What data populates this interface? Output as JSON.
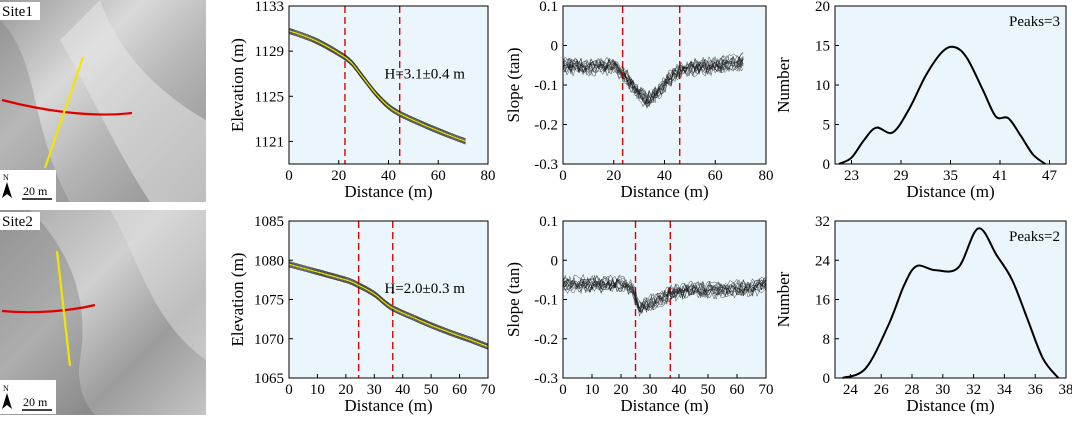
{
  "chart_data": [
    {
      "id": "site1-map",
      "type": "image",
      "label": "Site1",
      "north": "N",
      "scale": "20 m"
    },
    {
      "id": "site2-map",
      "type": "image",
      "label": "Site2",
      "north": "N",
      "scale": "20 m"
    },
    {
      "id": "p11",
      "type": "line",
      "xlabel": "Distance (m)",
      "ylabel": "Elevation (m)",
      "xlim": [
        0,
        80
      ],
      "ylim": [
        1119,
        1133
      ],
      "xticks": [
        0,
        20,
        40,
        60,
        80
      ],
      "yticks": [
        1121,
        1125,
        1129,
        1133
      ],
      "vlines": [
        22.5,
        44.5
      ],
      "annotation": "H=3.1±0.4 m",
      "series": [
        {
          "name": "profiles",
          "x": [
            0,
            10,
            20,
            25,
            30,
            35,
            40,
            45,
            55,
            65,
            71
          ],
          "y": [
            1130.8,
            1130.0,
            1128.8,
            1128.0,
            1126.6,
            1125.2,
            1124.1,
            1123.4,
            1122.4,
            1121.5,
            1121.0
          ]
        }
      ]
    },
    {
      "id": "p12",
      "type": "line",
      "xlabel": "Distance (m)",
      "ylabel": "Slope (tan)",
      "xlim": [
        0,
        80
      ],
      "ylim": [
        -0.3,
        0.1
      ],
      "xticks": [
        0,
        20,
        40,
        60,
        80
      ],
      "yticks": [
        0.1,
        0,
        -0.1,
        -0.2,
        -0.3
      ],
      "vlines": [
        23.5,
        46.0
      ],
      "series": [
        {
          "name": "profiles",
          "x": [
            0,
            10,
            20,
            25,
            30,
            33,
            36,
            40,
            45,
            50,
            60,
            71
          ],
          "y": [
            -0.05,
            -0.055,
            -0.05,
            -0.08,
            -0.12,
            -0.14,
            -0.125,
            -0.095,
            -0.065,
            -0.055,
            -0.05,
            -0.04
          ]
        }
      ]
    },
    {
      "id": "p13",
      "type": "line",
      "xlabel": "Distance (m)",
      "ylabel": "Number",
      "xlim": [
        21,
        49
      ],
      "ylim": [
        0,
        20
      ],
      "xticks": [
        23,
        29,
        35,
        41,
        47
      ],
      "yticks": [
        0,
        5,
        10,
        15,
        20
      ],
      "annotation": "Peaks=3",
      "series": [
        {
          "name": "count",
          "x": [
            21.5,
            23,
            24.5,
            26,
            28,
            30,
            32,
            34,
            35.5,
            37,
            39,
            40.5,
            42,
            43.5,
            45,
            46.5
          ],
          "y": [
            0,
            0.8,
            3.0,
            4.6,
            4.0,
            7.0,
            11.2,
            14.2,
            14.8,
            13.4,
            9.2,
            6.0,
            5.8,
            3.6,
            1.2,
            0
          ]
        }
      ]
    },
    {
      "id": "p21",
      "type": "line",
      "xlabel": "Distance (m)",
      "ylabel": "Elevation (m)",
      "xlim": [
        0,
        70
      ],
      "ylim": [
        1065,
        1085
      ],
      "xticks": [
        0,
        10,
        20,
        30,
        40,
        50,
        60,
        70
      ],
      "yticks": [
        1065,
        1070,
        1075,
        1080,
        1085
      ],
      "vlines": [
        24.5,
        36.5
      ],
      "annotation": "H=2.0±0.3 m",
      "series": [
        {
          "name": "profiles",
          "x": [
            0,
            10,
            20,
            24,
            30,
            36,
            45,
            55,
            65,
            70
          ],
          "y": [
            1079.5,
            1078.5,
            1077.5,
            1076.9,
            1075.7,
            1074.0,
            1072.5,
            1071.0,
            1069.7,
            1069.0
          ]
        }
      ]
    },
    {
      "id": "p22",
      "type": "line",
      "xlabel": "Distance (m)",
      "ylabel": "Slope (tan)",
      "xlim": [
        0,
        70
      ],
      "ylim": [
        -0.3,
        0.1
      ],
      "xticks": [
        0,
        10,
        20,
        30,
        40,
        50,
        60,
        70
      ],
      "yticks": [
        0.1,
        0,
        -0.1,
        -0.2,
        -0.3
      ],
      "vlines": [
        25.0,
        37.0
      ],
      "series": [
        {
          "name": "profiles",
          "x": [
            0,
            10,
            20,
            24,
            26,
            30,
            34,
            37,
            45,
            55,
            65,
            70
          ],
          "y": [
            -0.06,
            -0.06,
            -0.06,
            -0.07,
            -0.12,
            -0.11,
            -0.1,
            -0.08,
            -0.075,
            -0.075,
            -0.07,
            -0.06
          ]
        }
      ]
    },
    {
      "id": "p23",
      "type": "line",
      "xlabel": "Distance (m)",
      "ylabel": "Number",
      "xlim": [
        23,
        38
      ],
      "ylim": [
        0,
        32
      ],
      "xticks": [
        24,
        26,
        28,
        30,
        32,
        34,
        36,
        38
      ],
      "yticks": [
        0,
        8,
        16,
        24,
        32
      ],
      "annotation": "Peaks=2",
      "series": [
        {
          "name": "count",
          "x": [
            23.5,
            25,
            26.5,
            27.5,
            28.3,
            29.5,
            31,
            32.3,
            33.5,
            34.5,
            35.5,
            36.5,
            37.5
          ],
          "y": [
            0,
            2,
            11,
            19,
            22.8,
            22,
            22.5,
            30.5,
            25,
            20,
            12,
            4,
            0
          ]
        }
      ]
    }
  ]
}
